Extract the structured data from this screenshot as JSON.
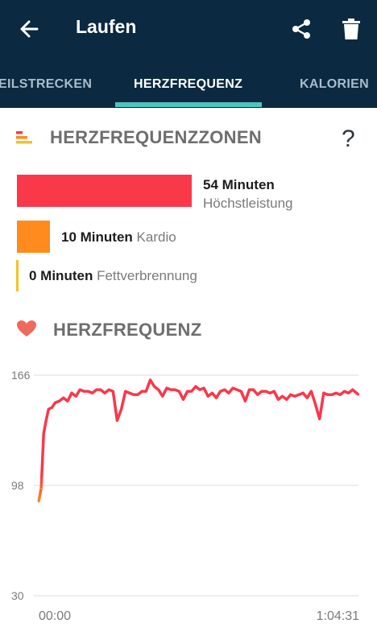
{
  "header": {
    "title": "Laufen",
    "icons": {
      "back": "arrow-left-icon",
      "share": "share-icon",
      "delete": "trash-icon"
    }
  },
  "tabs": [
    {
      "label": "EILSTRECKEN",
      "active": false
    },
    {
      "label": "HERZFREQUENZ",
      "active": true
    },
    {
      "label": "KALORIEN",
      "active": false
    }
  ],
  "zones_section": {
    "title": "HERZFREQUENZZONEN",
    "help": "?",
    "zones": [
      {
        "minutes_label": "54 Minuten",
        "name": "Höchstleistung",
        "minutes": 54,
        "color": "#f9384a"
      },
      {
        "minutes_label": "10 Minuten",
        "name": "Kardio",
        "minutes": 10,
        "color": "#ff8b1e"
      },
      {
        "minutes_label": "0 Minuten",
        "name": "Fettverbrennung",
        "minutes": 0,
        "color": "#f7c226"
      }
    ]
  },
  "heartrate_section": {
    "title": "HERZFREQUENZ",
    "icon": "heart-icon"
  },
  "chart_data": {
    "type": "line",
    "x_start_label": "00:00",
    "x_end_label": "1:04:31",
    "x_range_seconds": [
      0,
      3871
    ],
    "yticks": [
      "166",
      "98",
      "30"
    ],
    "ylim": [
      30,
      166
    ],
    "series": [
      {
        "color_low": "#ff8b1e",
        "color_high": "#f9384a",
        "x": [
          0,
          30,
          60,
          90,
          120,
          160,
          200,
          250,
          300,
          350,
          400,
          450,
          500,
          550,
          600,
          650,
          700,
          750,
          800,
          850,
          900,
          950,
          1000,
          1050,
          1100,
          1150,
          1200,
          1250,
          1300,
          1350,
          1400,
          1450,
          1500,
          1550,
          1600,
          1650,
          1700,
          1750,
          1800,
          1850,
          1900,
          1950,
          2000,
          2050,
          2100,
          2150,
          2200,
          2250,
          2300,
          2350,
          2400,
          2450,
          2500,
          2550,
          2600,
          2650,
          2700,
          2750,
          2800,
          2850,
          2900,
          2950,
          3000,
          3050,
          3100,
          3150,
          3200,
          3250,
          3300,
          3350,
          3400,
          3450,
          3500,
          3550,
          3600,
          3650,
          3700,
          3750,
          3800,
          3871
        ],
        "y": [
          88,
          96,
          130,
          138,
          145,
          146,
          149,
          150,
          152,
          150,
          155,
          153,
          157,
          156,
          156,
          155,
          157,
          157,
          155,
          157,
          156,
          138,
          145,
          156,
          155,
          154,
          154,
          156,
          156,
          163,
          159,
          157,
          153,
          158,
          157,
          157,
          156,
          151,
          156,
          156,
          159,
          157,
          158,
          153,
          155,
          152,
          156,
          157,
          155,
          158,
          157,
          156,
          150,
          157,
          157,
          154,
          156,
          156,
          155,
          156,
          151,
          153,
          151,
          154,
          153,
          154,
          155,
          152,
          156,
          148,
          139,
          155,
          154,
          154,
          155,
          154,
          156,
          155,
          157,
          154
        ]
      }
    ]
  }
}
